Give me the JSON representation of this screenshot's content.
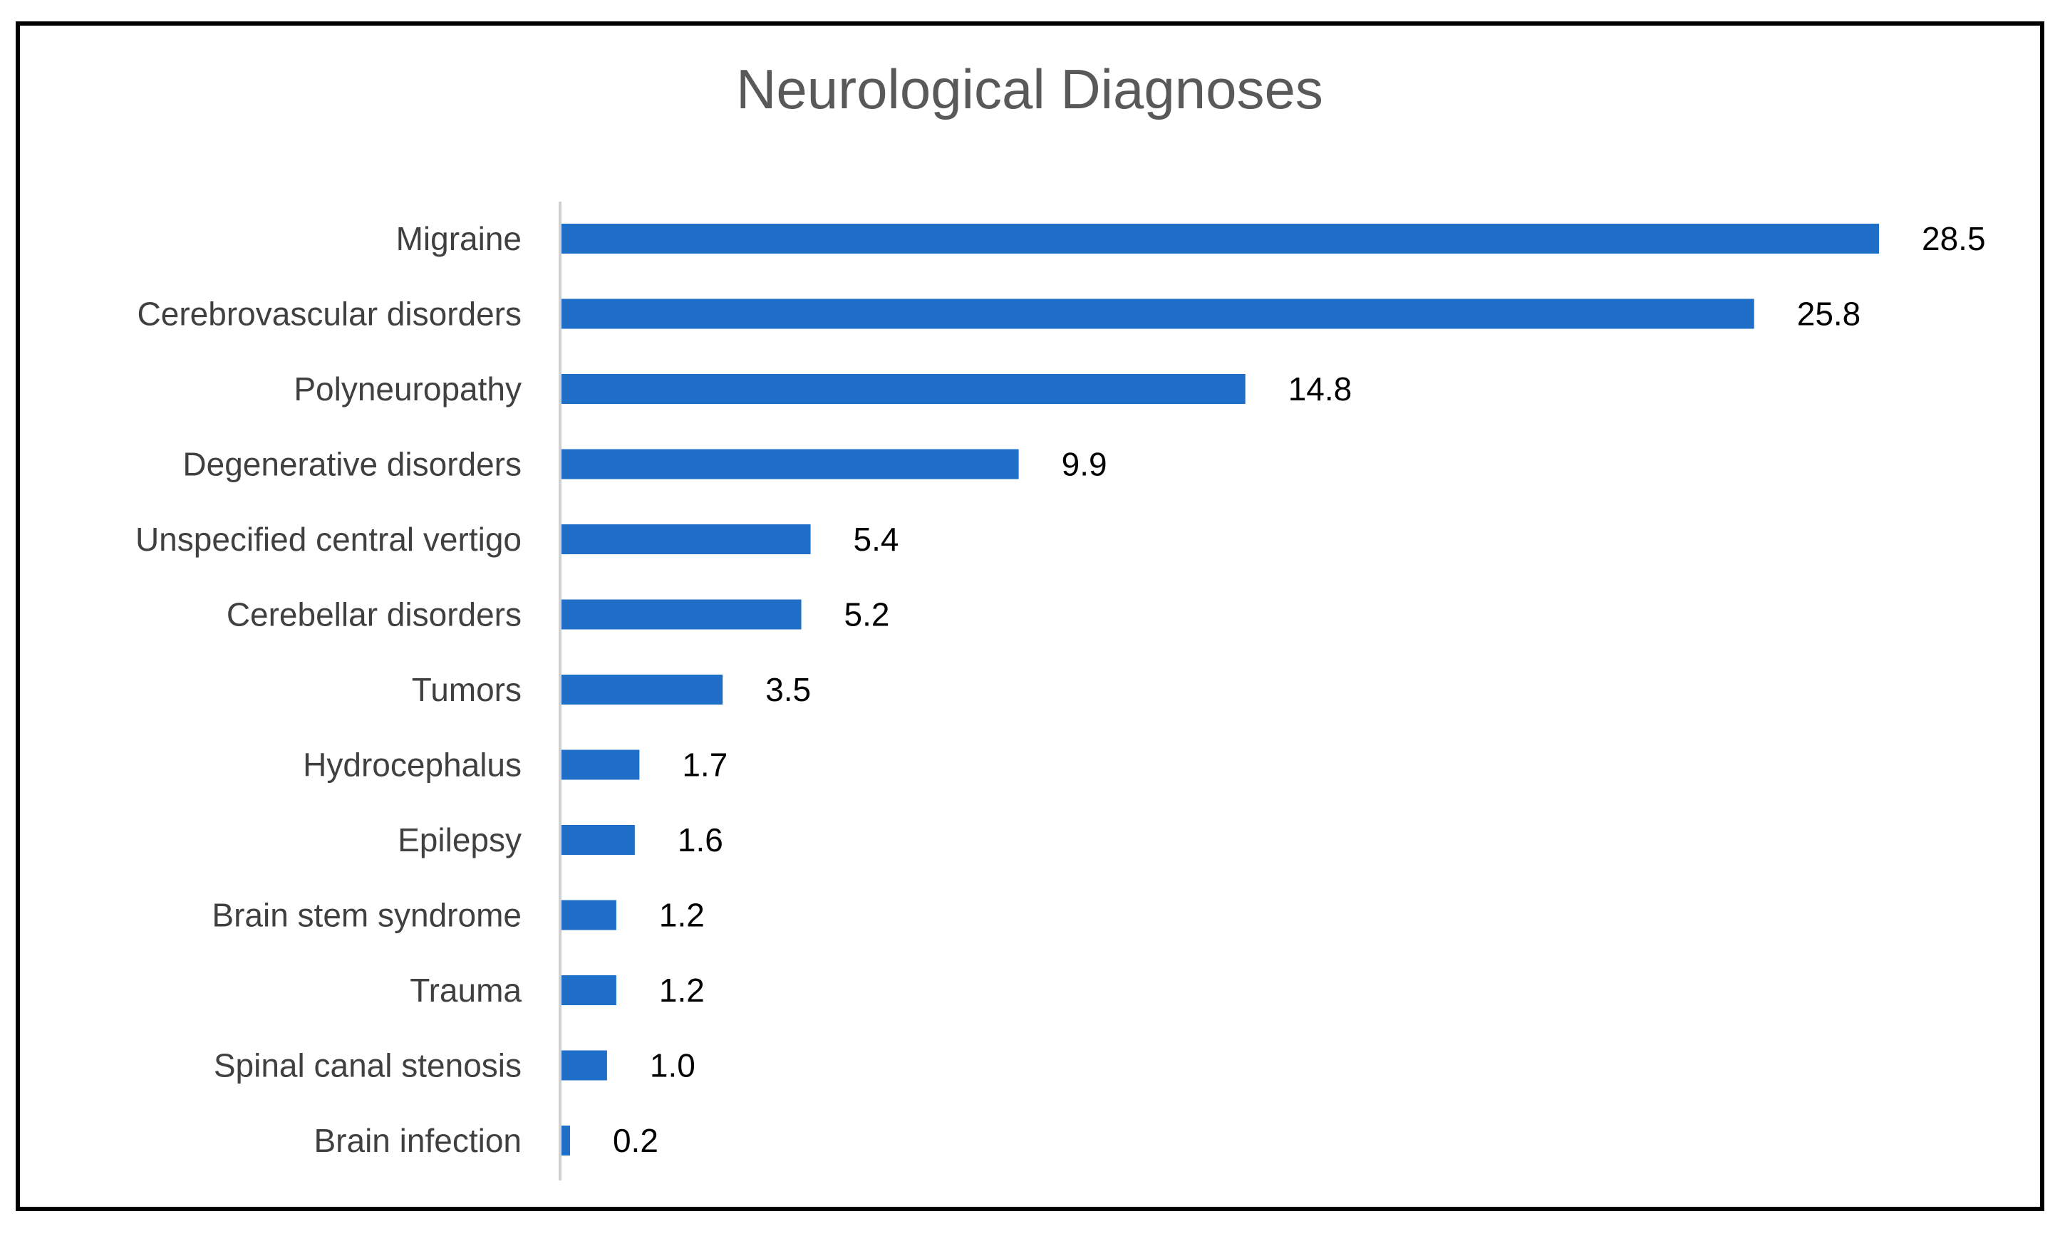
{
  "chart_data": {
    "type": "bar",
    "orientation": "horizontal",
    "title": "Neurological Diagnoses",
    "xlabel": "",
    "ylabel": "",
    "categories": [
      "Migraine",
      "Cerebrovascular disorders",
      "Polyneuropathy",
      "Degenerative disorders",
      "Unspecified central vertigo",
      "Cerebellar disorders",
      "Tumors",
      "Hydrocephalus",
      "Epilepsy",
      "Brain stem syndrome",
      "Trauma",
      "Spinal canal stenosis",
      "Brain infection"
    ],
    "values": [
      28.5,
      25.8,
      14.8,
      9.9,
      5.4,
      5.2,
      3.5,
      1.7,
      1.6,
      1.2,
      1.2,
      1.0,
      0.2
    ],
    "value_labels": [
      "28.5",
      "25.8",
      "14.8",
      "9.9",
      "5.4",
      "5.2",
      "3.5",
      "1.7",
      "1.6",
      "1.2",
      "1.2",
      "1.0",
      "0.2"
    ],
    "xlim": [
      0,
      28.5
    ],
    "grid": false,
    "legend": "none",
    "bar_color": "#1f6fc9"
  }
}
